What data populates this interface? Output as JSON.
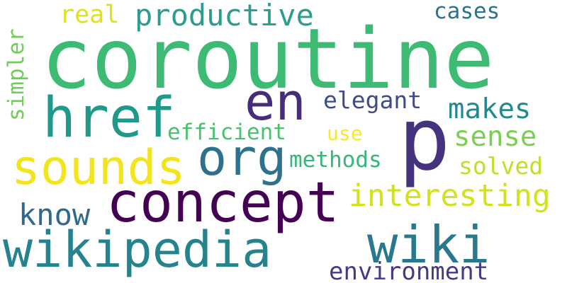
{
  "words": {
    "coroutine": "coroutine",
    "p": "p",
    "href": "href",
    "en": "en",
    "sounds": "sounds",
    "org": "org",
    "concept": "concept",
    "wikipedia": "wikipedia",
    "wiki": "wiki",
    "real": "real",
    "productive": "productive",
    "cases": "cases",
    "simpler": "simpler",
    "elegant": "elegant",
    "makes": "makes",
    "efficient": "efficient",
    "use": "use",
    "sense": "sense",
    "solved": "solved",
    "methods": "methods",
    "interesting": "interesting",
    "know": "know",
    "environment": "environment"
  },
  "colors": {
    "coroutine": "#3dbb74",
    "p": "#46337e",
    "href": "#1f9a8a",
    "en": "#472c7a",
    "sounds": "#f2e51d",
    "org": "#2c728e",
    "concept": "#440154",
    "wikipedia": "#25838e",
    "wiki": "#2a788e",
    "real": "#dde318",
    "productive": "#2a9d8f",
    "cases": "#2c728e",
    "simpler": "#6ece58",
    "elegant": "#3e4a89",
    "makes": "#23898e",
    "efficient": "#4ac16d",
    "use": "#fde725",
    "sense": "#7ad151",
    "solved": "#c2df23",
    "methods": "#35b779",
    "interesting": "#d2e21b",
    "know": "#31688e",
    "environment": "#443a83"
  }
}
